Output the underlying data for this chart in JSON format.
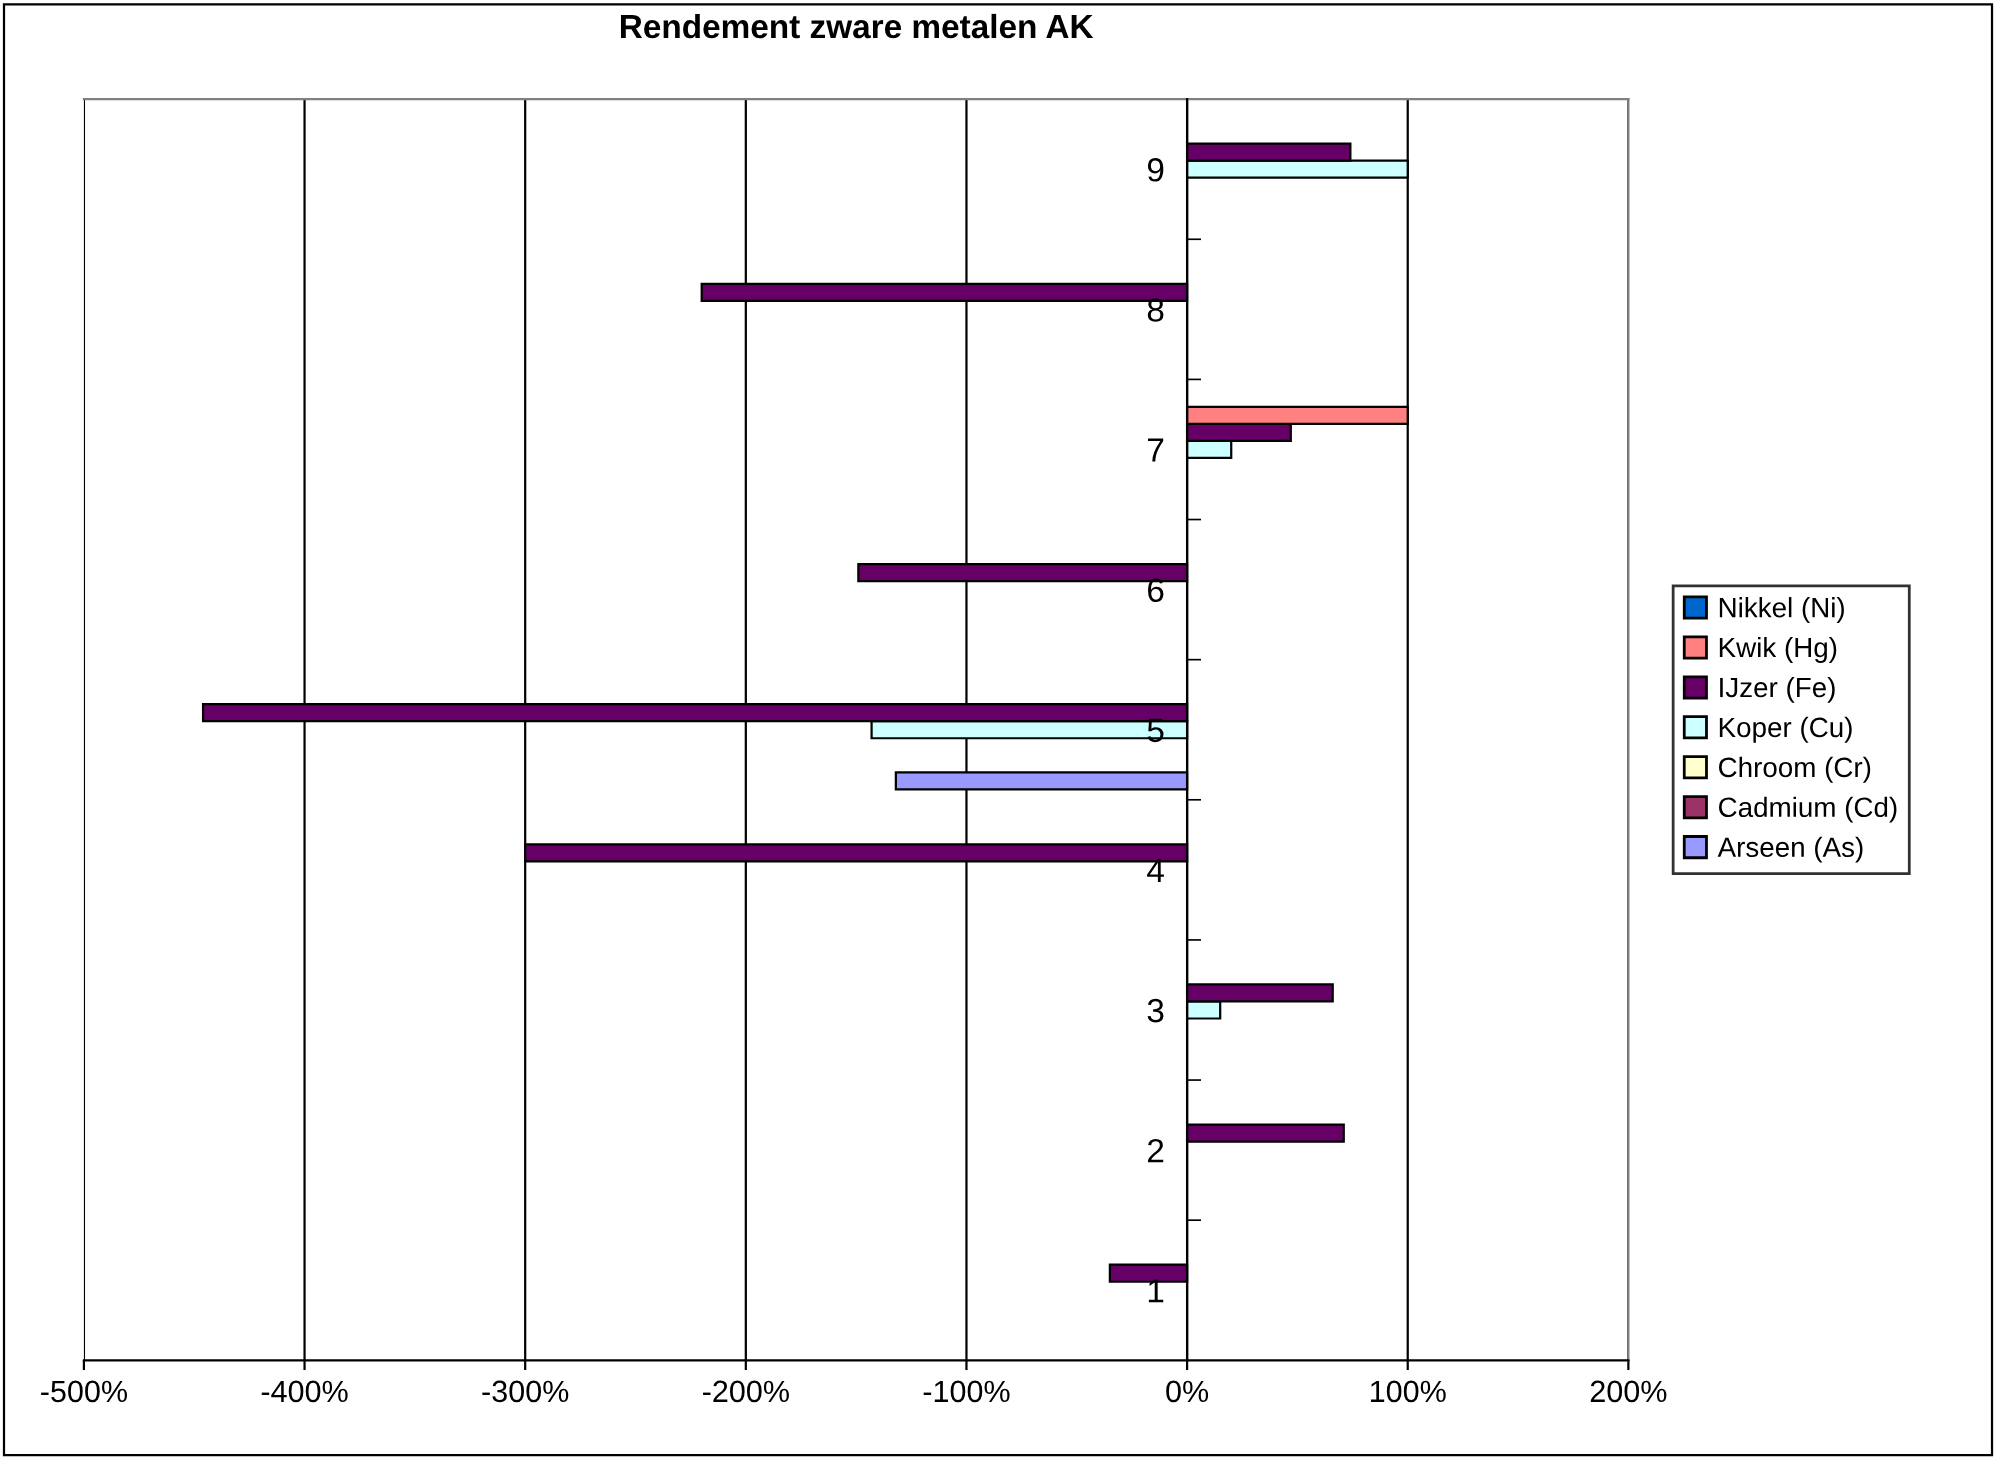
{
  "chart_data": {
    "type": "bar",
    "orientation": "horizontal",
    "title": "Rendement zware metalen AK",
    "categories": [
      "9",
      "8",
      "7",
      "6",
      "5",
      "4",
      "3",
      "2",
      "1"
    ],
    "series": [
      {
        "name": "Arseen (As)",
        "color": "#9999ff",
        "values": [
          null,
          null,
          null,
          null,
          -132,
          null,
          null,
          null,
          null
        ]
      },
      {
        "name": "Cadmium (Cd)",
        "color": "#993366",
        "values": [
          null,
          null,
          null,
          null,
          null,
          null,
          null,
          null,
          null
        ]
      },
      {
        "name": "Chroom (Cr)",
        "color": "#ffffcc",
        "values": [
          null,
          null,
          null,
          null,
          null,
          null,
          null,
          null,
          null
        ]
      },
      {
        "name": "Koper (Cu)",
        "color": "#ccffff",
        "values": [
          100,
          null,
          20,
          null,
          -143,
          null,
          15,
          null,
          null
        ]
      },
      {
        "name": "IJzer (Fe)",
        "color": "#660066",
        "values": [
          74,
          -220,
          47,
          -149,
          -446,
          -300,
          66,
          71,
          -35
        ]
      },
      {
        "name": "Kwik (Hg)",
        "color": "#ff8080",
        "values": [
          null,
          null,
          100,
          null,
          null,
          null,
          null,
          null,
          null
        ]
      },
      {
        "name": "Nikkel (Ni)",
        "color": "#0066cc",
        "values": [
          null,
          null,
          null,
          null,
          null,
          null,
          null,
          null,
          null
        ]
      }
    ],
    "xlim": [
      -500,
      200
    ],
    "xticks": [
      {
        "value": -500,
        "label": "-500%"
      },
      {
        "value": -400,
        "label": "-400%"
      },
      {
        "value": -300,
        "label": "-300%"
      },
      {
        "value": -200,
        "label": "-200%"
      },
      {
        "value": -100,
        "label": "-100%"
      },
      {
        "value": 0,
        "label": "0%"
      },
      {
        "value": 100,
        "label": "100%"
      },
      {
        "value": 200,
        "label": "200%"
      }
    ],
    "grid": "x",
    "legend": "right"
  }
}
